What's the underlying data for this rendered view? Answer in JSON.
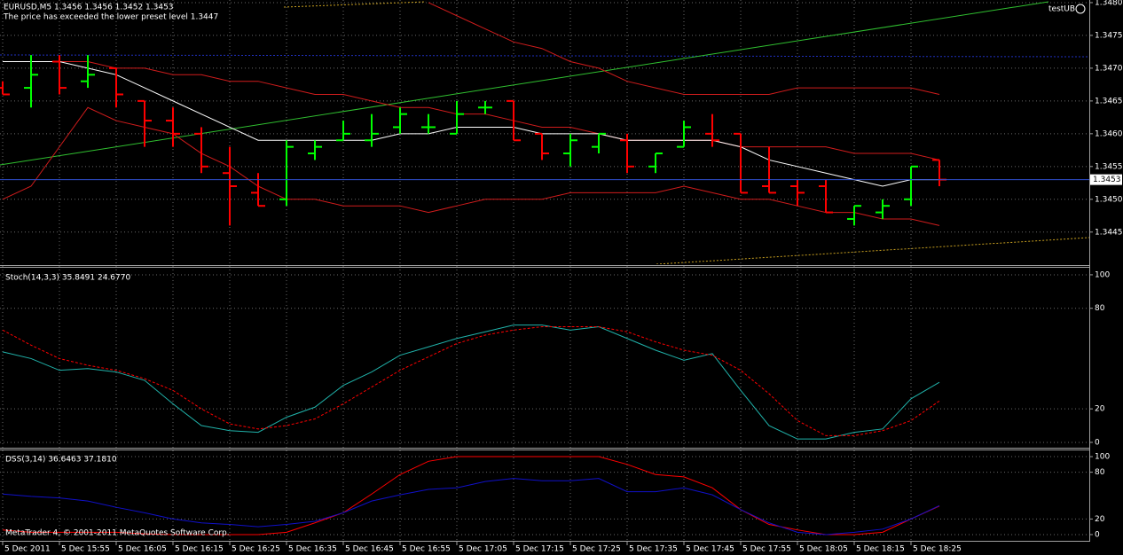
{
  "chart_data": [
    {
      "type": "ohlc",
      "title": "EURUSD,M5 1.3456 1.3456 1.3452 1.3453",
      "subtitle": "The price has exceeded the lower preset level 1.3447",
      "annotation": "testUB",
      "categories": [
        "5 Dec 2011",
        null,
        "5 Dec 15:55",
        null,
        "5 Dec 16:05",
        null,
        "5 Dec 16:15",
        null,
        "5 Dec 16:25",
        null,
        "5 Dec 16:35",
        null,
        "5 Dec 16:45",
        null,
        "5 Dec 16:55",
        null,
        "5 Dec 17:05",
        null,
        "5 Dec 17:15",
        null,
        "5 Dec 17:25",
        null,
        "5 Dec 17:35",
        null,
        "5 Dec 17:45",
        null,
        "5 Dec 17:55",
        null,
        "5 Dec 18:05",
        null,
        "5 Dec 18:15",
        null,
        "5 Dec 18:25",
        null
      ],
      "open": [
        1.3467,
        1.3467,
        1.3471,
        1.3468,
        1.347,
        1.3465,
        1.3462,
        1.346,
        1.3454,
        1.3451,
        1.345,
        1.3457,
        1.3459,
        1.3459,
        1.3461,
        1.3461,
        1.346,
        1.3464,
        1.3465,
        1.346,
        1.3457,
        1.3458,
        1.3459,
        1.3455,
        1.3458,
        1.346,
        1.346,
        1.3452,
        1.3452,
        1.3452,
        1.3447,
        1.3448,
        1.345,
        1.3456
      ],
      "high": [
        1.3468,
        1.3472,
        1.3472,
        1.3472,
        1.347,
        1.3465,
        1.3464,
        1.3461,
        1.3458,
        1.3454,
        1.3459,
        1.3459,
        1.3462,
        1.3463,
        1.3464,
        1.3463,
        1.3465,
        1.3465,
        1.3465,
        1.346,
        1.346,
        1.346,
        1.346,
        1.3457,
        1.3462,
        1.3463,
        1.346,
        1.3458,
        1.3453,
        1.3453,
        1.3449,
        1.345,
        1.3455,
        1.3456
      ],
      "low": [
        1.3466,
        1.3464,
        1.3466,
        1.3467,
        1.3464,
        1.3458,
        1.3458,
        1.3454,
        1.3446,
        1.3449,
        1.3449,
        1.3456,
        1.3459,
        1.3458,
        1.346,
        1.346,
        1.346,
        1.3463,
        1.3459,
        1.3456,
        1.3455,
        1.3457,
        1.3454,
        1.3454,
        1.3458,
        1.3458,
        1.3451,
        1.3451,
        1.3449,
        1.3448,
        1.3446,
        1.3447,
        1.3449,
        1.3452
      ],
      "close": [
        1.3466,
        1.3469,
        1.3467,
        1.3469,
        1.3466,
        1.3462,
        1.346,
        1.3455,
        1.3452,
        1.3449,
        1.3458,
        1.3458,
        1.346,
        1.346,
        1.3463,
        1.3461,
        1.3463,
        1.3464,
        1.3459,
        1.3457,
        1.3459,
        1.346,
        1.3455,
        1.3457,
        1.3461,
        1.3459,
        1.3451,
        1.3451,
        1.3451,
        1.3448,
        1.3449,
        1.3449,
        1.3455,
        1.3453
      ],
      "up_color": "#00ff00",
      "down_color": "#ff0000",
      "series": [
        {
          "color": "#d01c1c",
          "values": [
            null,
            null,
            null,
            null,
            null,
            null,
            null,
            null,
            null,
            null,
            null,
            null,
            null,
            null,
            null,
            1.348,
            1.3478,
            1.3476,
            1.3474,
            1.3473,
            1.3471,
            1.347,
            1.3468,
            1.3467,
            1.3466,
            1.3466,
            1.3466,
            1.3466,
            1.3467,
            1.3467,
            1.3467,
            1.3467,
            1.3467,
            1.3466
          ]
        },
        {
          "color": "#d01c1c",
          "values": [
            1.3471,
            1.3471,
            1.3471,
            1.3471,
            1.347,
            1.347,
            1.3469,
            1.3469,
            1.3468,
            1.3468,
            1.3467,
            1.3466,
            1.3466,
            1.3465,
            1.3464,
            1.3464,
            1.3463,
            1.3463,
            1.3462,
            1.3461,
            1.3461,
            1.346,
            1.3459,
            1.3459,
            1.3459,
            1.3459,
            1.3458,
            1.3458,
            1.3458,
            1.3458,
            1.3457,
            1.3457,
            1.3457,
            1.3456
          ]
        },
        {
          "color": "#d01c1c",
          "values": [
            1.345,
            1.3452,
            1.3458,
            1.3464,
            1.3462,
            1.3461,
            1.346,
            1.3457,
            1.3455,
            1.3452,
            1.345,
            1.345,
            1.3449,
            1.3449,
            1.3449,
            1.3448,
            1.3449,
            1.345,
            1.345,
            1.345,
            1.3451,
            1.3451,
            1.3451,
            1.3451,
            1.3452,
            1.3451,
            1.345,
            1.345,
            1.3449,
            1.3448,
            1.3448,
            1.3447,
            1.3447,
            1.3446
          ]
        },
        {
          "color": "#ffffff",
          "values": [
            1.3471,
            1.3471,
            1.3471,
            1.347,
            1.3469,
            1.3467,
            1.3465,
            1.3463,
            1.3461,
            1.3459,
            1.3459,
            1.3459,
            1.3459,
            1.3459,
            1.346,
            1.346,
            1.3461,
            1.3461,
            1.3461,
            1.346,
            1.346,
            1.346,
            1.3459,
            1.3459,
            1.3459,
            1.3459,
            1.3458,
            1.3456,
            1.3455,
            1.3454,
            1.3453,
            1.3452,
            1.3453,
            1.3453
          ]
        }
      ],
      "current_price": 1.3453,
      "ylim": [
        1.34401,
        1.34804
      ],
      "yticks": [
        1.3445,
        {
          "value": 1.345,
          "label": "1.3450"
        },
        1.3455,
        {
          "value": 1.346,
          "label": "1.3460"
        },
        1.3465,
        {
          "value": 1.347,
          "label": "1.3470"
        },
        1.3475,
        {
          "value": 1.348,
          "label": "1.3480"
        }
      ],
      "grid": true
    },
    {
      "type": "line",
      "title": "Stoch(14,3,3) 35.8491 24.6770",
      "series": [
        {
          "color": "#20b2aa",
          "values": [
            54,
            50,
            43,
            44,
            42,
            37,
            23,
            10,
            7,
            6,
            15,
            21,
            34,
            42,
            52,
            57,
            62,
            66,
            70,
            70,
            67,
            69,
            62,
            55,
            49,
            53,
            31,
            10,
            2,
            2,
            6,
            8,
            26,
            35.8491
          ]
        },
        {
          "color": "#ff0000",
          "dash": true,
          "values": [
            67,
            58,
            50,
            46,
            43,
            38,
            31,
            20,
            11,
            8,
            10,
            14,
            23,
            33,
            43,
            51,
            59,
            64,
            67,
            69,
            69,
            69,
            66,
            60,
            55,
            52,
            43,
            29,
            13,
            4,
            4,
            7,
            13,
            24.677
          ]
        }
      ],
      "ylim": [
        -3.2,
        104.2
      ],
      "yticks": [
        0,
        20,
        80,
        100
      ],
      "grid": true
    },
    {
      "type": "line",
      "title": "DSS(3,14) 36.6463 37.1810",
      "annotation": "MetaTrader 4, © 2001-2011 MetaQuotes Software Corp.",
      "series": [
        {
          "color": "#ff0000",
          "values": [
            6,
            3,
            3,
            3,
            3,
            1,
            0,
            0,
            0,
            0,
            3,
            15,
            28,
            52,
            77,
            94,
            100,
            100,
            100,
            100,
            100,
            100,
            90,
            77,
            74,
            60,
            32,
            13,
            6,
            0,
            0,
            3,
            20,
            36.6463
          ]
        },
        {
          "color": "#1010c8",
          "values": [
            52,
            49,
            47,
            43,
            35,
            28,
            20,
            15,
            13,
            10,
            13,
            17,
            28,
            43,
            51,
            58,
            60,
            68,
            72,
            69,
            69,
            72,
            55,
            55,
            60,
            51,
            32,
            15,
            3,
            0,
            3,
            7,
            20,
            37.181
          ]
        }
      ],
      "ylim": [
        -8,
        108
      ],
      "yticks": [
        0,
        20,
        80,
        100
      ],
      "grid": true
    }
  ]
}
